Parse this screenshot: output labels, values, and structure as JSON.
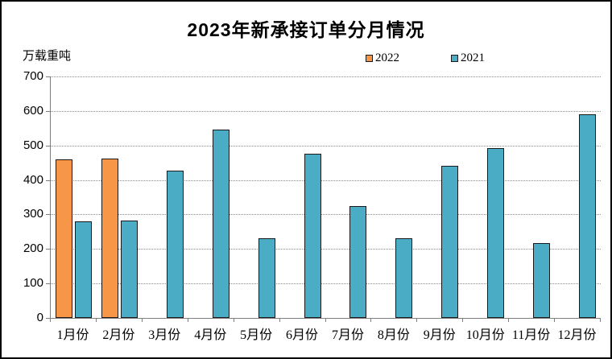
{
  "title": "2023年新承接订单分月情况",
  "unit_label": "万载重吨",
  "colors": {
    "background": "#ffffff",
    "frame_border": "#000000",
    "axis": "#7f7f7f",
    "gridline": "#8c8c8c",
    "bar_border": "#1a1a1a",
    "series_2022": "#F79646",
    "series_2021": "#4BACC6"
  },
  "chart_data": {
    "type": "bar",
    "title": "2023年新承接订单分月情况",
    "ylabel": "万载重吨",
    "xlabel": "",
    "categories": [
      "1月份",
      "2月份",
      "3月份",
      "4月份",
      "5月份",
      "6月份",
      "7月份",
      "8月份",
      "9月份",
      "10月份",
      "11月份",
      "12月份"
    ],
    "series": [
      {
        "name": "2022",
        "color": "#F79646",
        "values": [
          460,
          462,
          null,
          null,
          null,
          null,
          null,
          null,
          null,
          null,
          null,
          null
        ]
      },
      {
        "name": "2021",
        "color": "#4BACC6",
        "values": [
          281,
          283,
          428,
          546,
          230,
          476,
          325,
          232,
          440,
          492,
          218,
          591
        ]
      }
    ],
    "ylim": [
      0,
      700
    ],
    "ytick_interval": 100,
    "y_tick_labels": [
      "0",
      "100",
      "200",
      "300",
      "400",
      "500",
      "600",
      "700"
    ],
    "grid": "horizontal-dotted",
    "legend_position": "top-center"
  }
}
